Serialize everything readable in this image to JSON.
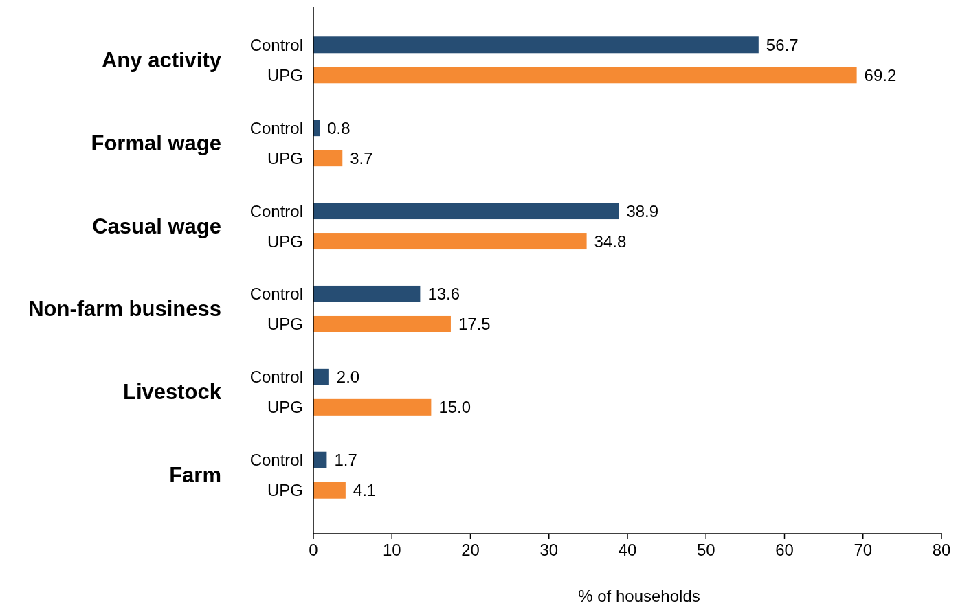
{
  "chart_data": {
    "type": "bar",
    "orientation": "horizontal",
    "xlabel": "% of households",
    "categories": [
      "Any activity",
      "Formal wage",
      "Casual wage",
      "Non-farm business",
      "Livestock",
      "Farm"
    ],
    "series": [
      {
        "name": "Control",
        "color": "#264d73",
        "values": [
          56.7,
          0.8,
          38.9,
          13.6,
          2.0,
          1.7
        ],
        "value_labels": [
          "56.7",
          "0.8",
          "38.9",
          "13.6",
          "2.0",
          "1.7"
        ]
      },
      {
        "name": "UPG",
        "color": "#f58a33",
        "values": [
          69.2,
          3.7,
          34.8,
          17.5,
          15.0,
          4.1
        ],
        "value_labels": [
          "69.2",
          "3.7",
          "34.8",
          "17.5",
          "15.0",
          "4.1"
        ]
      }
    ],
    "xlim": [
      0,
      80
    ],
    "xticks": [
      0,
      10,
      20,
      30,
      40,
      50,
      60,
      70,
      80
    ],
    "grid": false
  }
}
